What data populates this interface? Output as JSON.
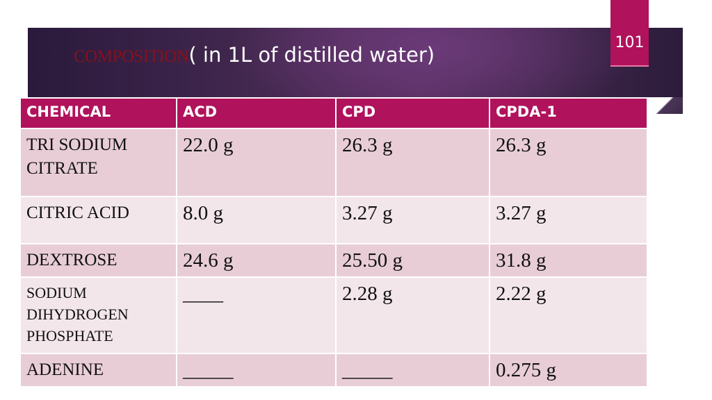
{
  "slide": {
    "title_word": "COMPOSITION",
    "title_rest": "( in 1L of distilled water)",
    "page_number": "101",
    "colors": {
      "accent": "#b0125c",
      "row_dark": "#e8cdd7",
      "row_light": "#f3e6eb",
      "banner": "#43284f"
    }
  },
  "table": {
    "headers": [
      "CHEMICAL",
      "ACD",
      "CPD",
      "CPDA-1"
    ],
    "rows": [
      {
        "chemical": "TRI SODIUM CITRATE",
        "acd": "22.0 g",
        "cpd": "26.3 g",
        "cpda1": "26.3 g"
      },
      {
        "chemical": "CITRIC ACID",
        "acd": "8.0 g",
        "cpd": "3.27 g",
        "cpda1": "3.27 g"
      },
      {
        "chemical": "DEXTROSE",
        "acd": "24.6 g",
        "cpd": "25.50 g",
        "cpda1": "31.8 g"
      },
      {
        "chemical": "SODIUM DIHYDROGEN PHOSPHATE",
        "acd": "____",
        "cpd": "2.28 g",
        "cpda1": "2.22 g"
      },
      {
        "chemical": "ADENINE",
        "acd": "_____",
        "cpd": "_____",
        "cpda1": "0.275 g"
      }
    ]
  }
}
